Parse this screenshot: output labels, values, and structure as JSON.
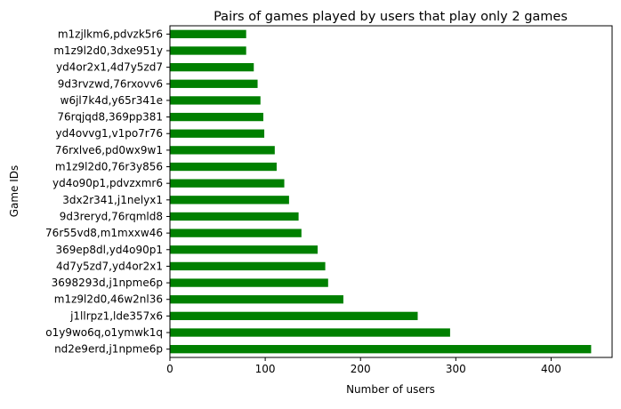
{
  "chart_data": {
    "type": "bar",
    "orientation": "horizontal",
    "title": "Pairs of games played by users that play only 2 games",
    "xlabel": "Number of users",
    "ylabel": "Game IDs",
    "xlim": [
      0,
      464
    ],
    "xticks": [
      0,
      100,
      200,
      300,
      400
    ],
    "grid": false,
    "bar_color": "#008000",
    "categories": [
      "nd2e9erd,j1npme6p",
      "o1y9wo6q,o1ymwk1q",
      "j1llrpz1,lde357x6",
      "m1z9l2d0,46w2nl36",
      "3698293d,j1npme6p",
      "4d7y5zd7,yd4or2x1",
      "369ep8dl,yd4o90p1",
      "76r55vd8,m1mxxw46",
      "9d3reryd,76rqmld8",
      "3dx2r341,j1nelyx1",
      "yd4o90p1,pdvzxmr6",
      "m1z9l2d0,76r3y856",
      "76rxlve6,pd0wx9w1",
      "yd4ovvg1,v1po7r76",
      "76rqjqd8,369pp381",
      "w6jl7k4d,y65r341e",
      "9d3rvzwd,76rxovv6",
      "yd4or2x1,4d7y5zd7",
      "m1z9l2d0,3dxe951y",
      "m1zjlkm6,pdvzk5r6"
    ],
    "values": [
      442,
      294,
      260,
      182,
      166,
      163,
      155,
      138,
      135,
      125,
      120,
      112,
      110,
      99,
      98,
      95,
      92,
      88,
      80,
      80
    ]
  }
}
